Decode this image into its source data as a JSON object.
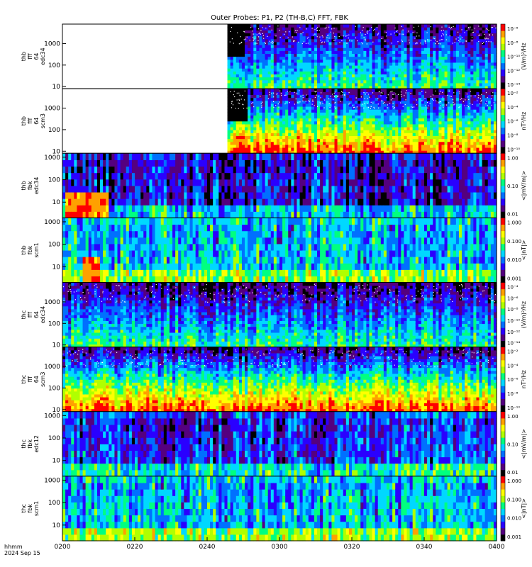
{
  "figure": {
    "title": "Outer Probes: P1, P2 (TH-B,C) FFT, FBK",
    "time_label": "hhmm",
    "date_label": "2024 Sep 15"
  },
  "chart_data": {
    "type": "heatmap",
    "title": "Outer Probes: P1, P2 (TH-B,C) FFT, FBK",
    "x_axis": {
      "ticks": [
        "0200",
        "0220",
        "0240",
        "0300",
        "0320",
        "0340",
        "0400"
      ],
      "range_minutes": [
        0,
        120
      ]
    },
    "colormap": [
      "#000000",
      "#55007f",
      "#2a00ff",
      "#0070ff",
      "#00d8ff",
      "#00ff80",
      "#b0ff00",
      "#ffff00",
      "#ffa000",
      "#ff0000"
    ],
    "panels": [
      {
        "ylabel": [
          "thb",
          "fff",
          "64",
          "edc34"
        ],
        "yticks": [
          "1000",
          "100",
          "10"
        ],
        "ytick_values": [
          1000,
          100,
          10
        ],
        "yrange": [
          8,
          8000
        ],
        "kind": "fft",
        "colorbar_label": "(V/m)²/Hz",
        "colorbar_ticks": [
          "10⁻⁶",
          "10⁻⁸",
          "10⁻¹⁰",
          "10⁻¹²",
          "10⁻¹⁴"
        ],
        "data_start_minute": 46,
        "data_end_minute": 120,
        "band_minutes": [
          46,
          50
        ],
        "band_value": "high",
        "base_level": 0.35
      },
      {
        "ylabel": [
          "thb",
          "fff",
          "64",
          "scm3"
        ],
        "yticks": [
          "1000",
          "100",
          "10"
        ],
        "ytick_values": [
          1000,
          100,
          10
        ],
        "yrange": [
          8,
          8000
        ],
        "kind": "fft",
        "colorbar_label": "nT²/Hz",
        "colorbar_ticks": [
          "10⁻²",
          "10⁻⁴",
          "10⁻⁶",
          "10⁻⁸",
          "10⁻¹⁰"
        ],
        "data_start_minute": 46,
        "data_end_minute": 120,
        "band_minutes": [
          46,
          51
        ],
        "band_value": "high",
        "base_level": 0.65
      },
      {
        "ylabel": [
          "thb",
          "fbk",
          "edc34"
        ],
        "yticks": [
          "1000",
          "100",
          "10"
        ],
        "ytick_values": [
          1000,
          100,
          10
        ],
        "yrange": [
          2,
          1500
        ],
        "kind": "fbk",
        "colorbar_label": "<|mV/m|>",
        "colorbar_ticks": [
          "1.00",
          "0.10",
          "0.01"
        ],
        "data_start_minute": 0,
        "data_end_minute": 120,
        "burst_minutes": [
          1,
          13
        ],
        "base_level": 0.25
      },
      {
        "ylabel": [
          "thb",
          "fbk",
          "scm1"
        ],
        "yticks": [
          "1000",
          "100",
          "10"
        ],
        "ytick_values": [
          1000,
          100,
          10
        ],
        "yrange": [
          2,
          1500
        ],
        "kind": "fbk",
        "colorbar_label": "<|nT|>",
        "colorbar_ticks": [
          "1.000",
          "0.100",
          "0.010",
          "0.001"
        ],
        "data_start_minute": 0,
        "data_end_minute": 120,
        "burst_minutes": [
          6,
          10
        ],
        "base_level": 0.45
      },
      {
        "ylabel": [
          "thc",
          "fff",
          "64",
          "edc34"
        ],
        "yticks": [
          "1000",
          "100",
          "10"
        ],
        "ytick_values": [
          1000,
          100,
          10
        ],
        "yrange": [
          8,
          8000
        ],
        "kind": "fft",
        "colorbar_label": "(V/m)²/Hz",
        "colorbar_ticks": [
          "10⁻⁴",
          "10⁻⁶",
          "10⁻⁸",
          "10⁻¹⁰",
          "10⁻¹²",
          "10⁻¹⁴"
        ],
        "data_start_minute": 0,
        "data_end_minute": 120,
        "base_level": 0.35
      },
      {
        "ylabel": [
          "thc",
          "fff",
          "64",
          "scm3"
        ],
        "yticks": [
          "1000",
          "100",
          "10"
        ],
        "ytick_values": [
          1000,
          100,
          10
        ],
        "yrange": [
          8,
          8000
        ],
        "kind": "fft",
        "colorbar_label": "nT²/Hz",
        "colorbar_ticks": [
          "10⁻²",
          "10⁻⁴",
          "10⁻⁶",
          "10⁻⁸",
          "10⁻¹⁰"
        ],
        "data_start_minute": 0,
        "data_end_minute": 120,
        "base_level": 0.65
      },
      {
        "ylabel": [
          "thc",
          "fbk",
          "edc12"
        ],
        "yticks": [
          "1000",
          "100",
          "10"
        ],
        "ytick_values": [
          1000,
          100,
          10
        ],
        "yrange": [
          2,
          1500
        ],
        "kind": "fbk",
        "colorbar_label": "<|mV/m|>",
        "colorbar_ticks": [
          "1.00",
          "0.10",
          "0.01"
        ],
        "data_start_minute": 0,
        "data_end_minute": 120,
        "base_level": 0.3
      },
      {
        "ylabel": [
          "thc",
          "fbk",
          "scm1"
        ],
        "yticks": [
          "1000",
          "100",
          "10"
        ],
        "ytick_values": [
          1000,
          100,
          10
        ],
        "yrange": [
          2,
          1500
        ],
        "kind": "fbk",
        "colorbar_label": "<|nT|>",
        "colorbar_ticks": [
          "1.000",
          "0.100",
          "0.010",
          "0.001"
        ],
        "data_start_minute": 0,
        "data_end_minute": 120,
        "base_level": 0.45
      }
    ]
  }
}
